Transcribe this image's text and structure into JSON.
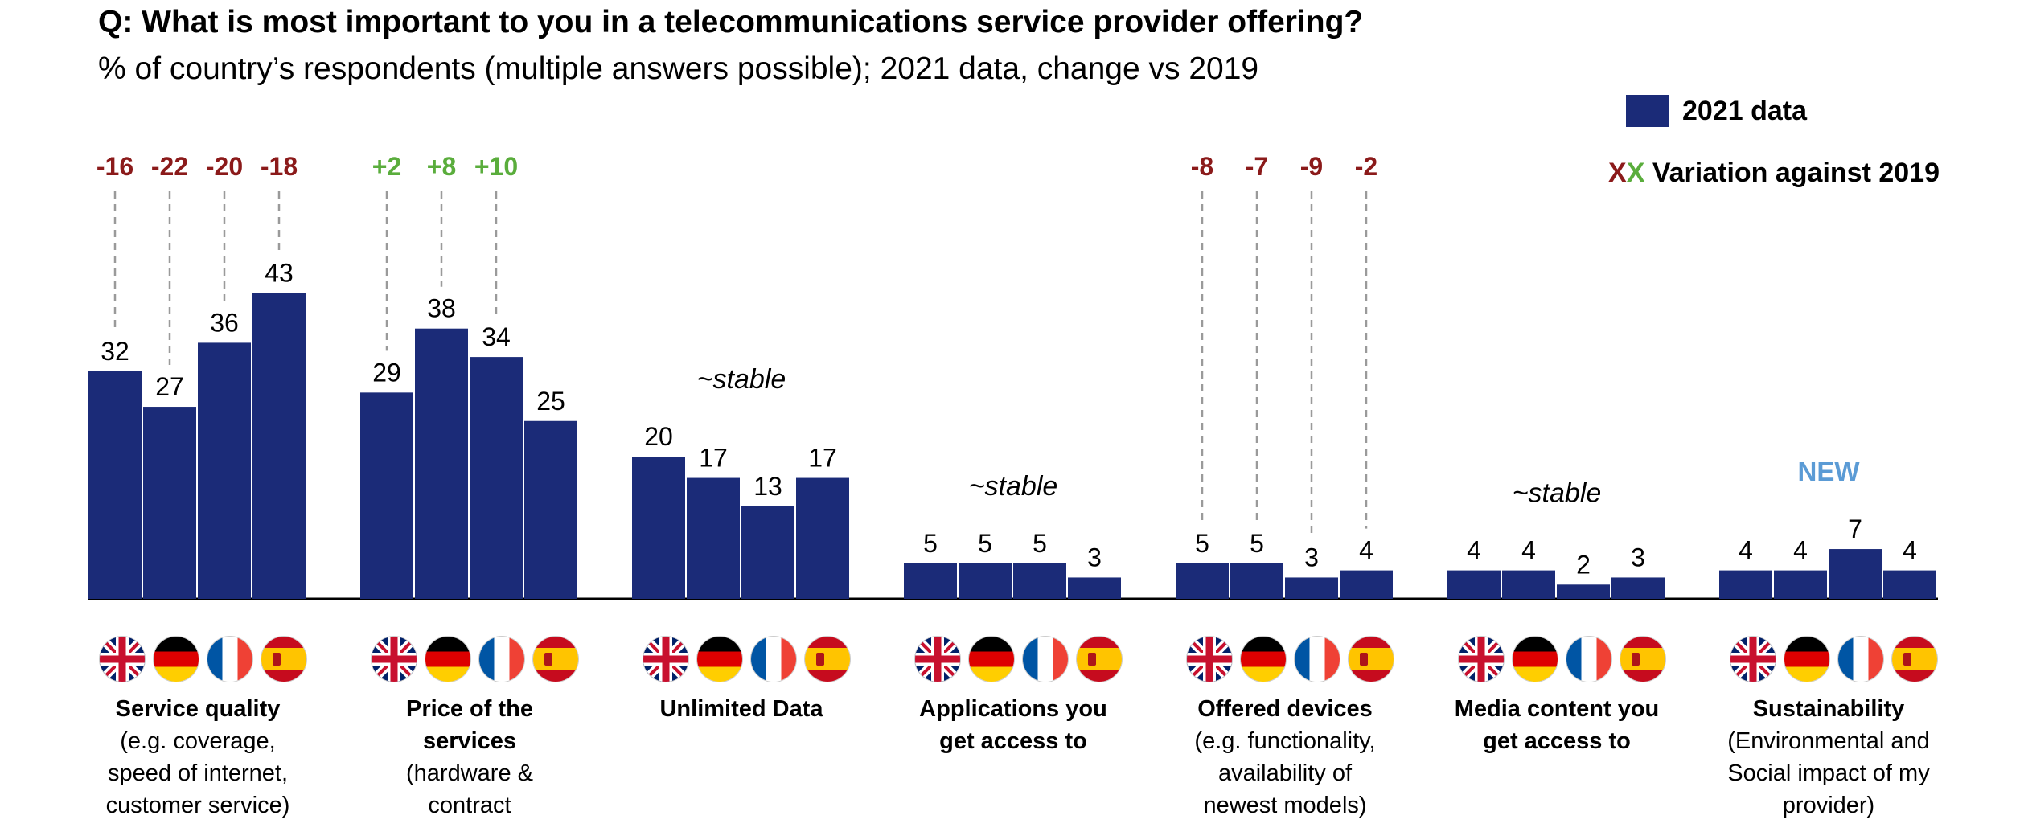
{
  "title": "Q: What is most important to you in a telecommunications service provider offering?",
  "subtitle": "% of country’s respondents (multiple answers possible); 2021 data, change vs 2019",
  "legend": {
    "bar_label": "2021 data",
    "variation_xx_1": "X",
    "variation_xx_2": "X",
    "variation_label": "Variation against 2019"
  },
  "colors": {
    "bar": "#1b2b78",
    "negative": "#8b1a1a",
    "positive": "#5aad3c",
    "new": "#5b9bd5",
    "dashes": "#9a9a9a"
  },
  "countries": [
    "uk-flag-icon",
    "germany-flag-icon",
    "france-flag-icon",
    "spain-flag-icon"
  ],
  "chart_data": {
    "type": "bar",
    "categories": [
      "Service quality",
      "Price of the services",
      "Unlimited Data",
      "Applications you get access to",
      "Offered devices",
      "Media content you get access to",
      "Sustainability"
    ],
    "category_descriptions": [
      [
        "(e.g. coverage,",
        "speed of internet,",
        "customer service)"
      ],
      [
        "(hardware &",
        "contract"
      ],
      [],
      [],
      [
        "(e.g. functionality,",
        "availability of",
        "newest models)"
      ],
      [],
      [
        "(Environmental and",
        "Social impact of my",
        "provider)"
      ]
    ],
    "category_name_lines": [
      [
        "Service quality"
      ],
      [
        "Price of the",
        "services"
      ],
      [
        "Unlimited Data"
      ],
      [
        "Applications you",
        "get access to"
      ],
      [
        "Offered devices"
      ],
      [
        "Media content you",
        "get access to"
      ],
      [
        "Sustainability"
      ]
    ],
    "values": [
      [
        32,
        27,
        36,
        43
      ],
      [
        29,
        38,
        34,
        25
      ],
      [
        20,
        17,
        13,
        17
      ],
      [
        5,
        5,
        5,
        3
      ],
      [
        5,
        5,
        3,
        4
      ],
      [
        4,
        4,
        2,
        3
      ],
      [
        4,
        4,
        7,
        4
      ]
    ],
    "variations": [
      [
        "-16",
        "-22",
        "-20",
        "-18"
      ],
      [
        "+2",
        "+8",
        "+10",
        null
      ],
      [],
      [],
      [
        "-8",
        "-7",
        "-9",
        "-2"
      ],
      [],
      []
    ],
    "annotations": [
      "",
      "",
      "~stable",
      "~stable",
      "",
      "~stable",
      "NEW"
    ],
    "ylim": [
      0,
      45
    ],
    "grid": false
  }
}
